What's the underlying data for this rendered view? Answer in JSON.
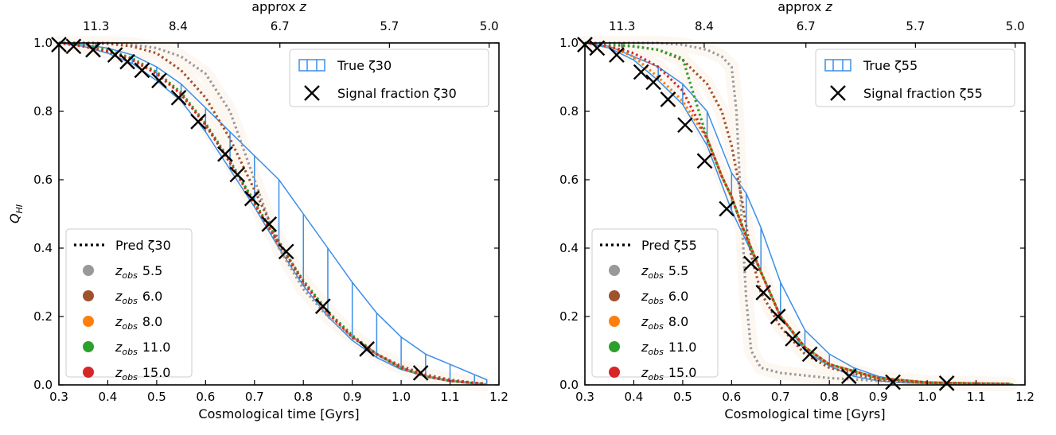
{
  "chart_data": [
    {
      "type": "line",
      "title": "",
      "xlabel": "Cosmological time [Gyrs]",
      "ylabel": "Q_HI",
      "top_xlabel": "approx z",
      "xlim": [
        0.3,
        1.2
      ],
      "ylim": [
        0.0,
        1.0
      ],
      "xticks": [
        "0.3",
        "0.4",
        "0.5",
        "0.6",
        "0.7",
        "0.8",
        "0.9",
        "1.0",
        "1.1",
        "1.2"
      ],
      "yticks": [
        "0.0",
        "0.2",
        "0.4",
        "0.6",
        "0.8",
        "1.0"
      ],
      "top_ticks": [
        {
          "label": "11.3",
          "t": 0.376
        },
        {
          "label": "8.4",
          "t": 0.544
        },
        {
          "label": "6.7",
          "t": 0.752
        },
        {
          "label": "5.7",
          "t": 0.976
        },
        {
          "label": "5.0",
          "t": 1.18
        }
      ],
      "grid": false,
      "legend_upper": {
        "position": "top-right",
        "entries": [
          {
            "kind": "band",
            "label": "True ζ30",
            "color": "#3a8fe8"
          },
          {
            "kind": "marker",
            "label": "Signal fraction ζ30",
            "color": "#000000"
          }
        ]
      },
      "legend_lower": {
        "position": "bottom-left",
        "entries": [
          {
            "kind": "dotted",
            "label": "Pred ζ30",
            "color": "#000000"
          },
          {
            "kind": "dot",
            "label_main": "z",
            "label_sub": "obs",
            "label_val": "5.5",
            "color": "#999999"
          },
          {
            "kind": "dot",
            "label_main": "z",
            "label_sub": "obs",
            "label_val": "6.0",
            "color": "#a0522d"
          },
          {
            "kind": "dot",
            "label_main": "z",
            "label_sub": "obs",
            "label_val": "8.0",
            "color": "#ff7f0e"
          },
          {
            "kind": "dot",
            "label_main": "z",
            "label_sub": "obs",
            "label_val": "11.0",
            "color": "#2ca02c"
          },
          {
            "kind": "dot",
            "label_main": "z",
            "label_sub": "obs",
            "label_val": "15.0",
            "color": "#d62728"
          }
        ]
      },
      "true_band": {
        "name": "True ζ30",
        "color": "#3a8fe8",
        "x": [
          0.3,
          0.35,
          0.4,
          0.45,
          0.5,
          0.55,
          0.6,
          0.65,
          0.7,
          0.75,
          0.8,
          0.85,
          0.9,
          0.95,
          1.0,
          1.05,
          1.1,
          1.15,
          1.175
        ],
        "upper": [
          1.0,
          0.995,
          0.985,
          0.965,
          0.93,
          0.88,
          0.81,
          0.74,
          0.67,
          0.6,
          0.5,
          0.4,
          0.3,
          0.21,
          0.14,
          0.09,
          0.06,
          0.03,
          0.015
        ],
        "lower": [
          1.0,
          0.99,
          0.97,
          0.94,
          0.89,
          0.83,
          0.74,
          0.63,
          0.52,
          0.4,
          0.29,
          0.2,
          0.13,
          0.08,
          0.045,
          0.025,
          0.012,
          0.005,
          0.003
        ]
      },
      "series": [
        {
          "name": "z_obs 5.5",
          "color": "#999999",
          "x": [
            0.3,
            0.35,
            0.4,
            0.45,
            0.5,
            0.55,
            0.6,
            0.65,
            0.7,
            0.75,
            0.8,
            0.85,
            0.9,
            0.95,
            1.0,
            1.05,
            1.1,
            1.15,
            1.17
          ],
          "y": [
            1.0,
            1.0,
            1.0,
            0.995,
            0.985,
            0.96,
            0.91,
            0.8,
            0.6,
            0.4,
            0.28,
            0.2,
            0.14,
            0.09,
            0.05,
            0.025,
            0.012,
            0.004,
            0.002
          ]
        },
        {
          "name": "z_obs 6.0",
          "color": "#a0522d",
          "x": [
            0.3,
            0.35,
            0.4,
            0.45,
            0.5,
            0.55,
            0.6,
            0.65,
            0.7,
            0.75,
            0.8,
            0.85,
            0.9,
            0.95,
            1.0,
            1.05,
            1.1,
            1.15,
            1.17
          ],
          "y": [
            1.0,
            1.0,
            0.998,
            0.99,
            0.97,
            0.92,
            0.84,
            0.72,
            0.57,
            0.42,
            0.3,
            0.21,
            0.14,
            0.09,
            0.055,
            0.03,
            0.015,
            0.006,
            0.004
          ]
        },
        {
          "name": "z_obs 8.0",
          "color": "#ff7f0e",
          "x": [
            0.3,
            0.35,
            0.4,
            0.45,
            0.5,
            0.55,
            0.6,
            0.65,
            0.7,
            0.75,
            0.8,
            0.85,
            0.9,
            0.95,
            1.0,
            1.05,
            1.1,
            1.15,
            1.17
          ],
          "y": [
            1.0,
            0.99,
            0.975,
            0.95,
            0.91,
            0.85,
            0.76,
            0.65,
            0.53,
            0.41,
            0.3,
            0.21,
            0.14,
            0.09,
            0.05,
            0.025,
            0.012,
            0.005,
            0.003
          ]
        },
        {
          "name": "z_obs 11.0",
          "color": "#2ca02c",
          "x": [
            0.3,
            0.35,
            0.4,
            0.45,
            0.5,
            0.55,
            0.6,
            0.65,
            0.7,
            0.75,
            0.8,
            0.85,
            0.9,
            0.95,
            1.0,
            1.05,
            1.1,
            1.15,
            1.17
          ],
          "y": [
            1.0,
            0.995,
            0.98,
            0.955,
            0.915,
            0.855,
            0.765,
            0.655,
            0.535,
            0.415,
            0.305,
            0.215,
            0.145,
            0.09,
            0.05,
            0.025,
            0.012,
            0.005,
            0.003
          ]
        },
        {
          "name": "z_obs 15.0",
          "color": "#d62728",
          "x": [
            0.3,
            0.35,
            0.4,
            0.45,
            0.5,
            0.55,
            0.6,
            0.65,
            0.7,
            0.75,
            0.8,
            0.85,
            0.9,
            0.95,
            1.0,
            1.05,
            1.1,
            1.15,
            1.17
          ],
          "y": [
            1.0,
            0.99,
            0.975,
            0.95,
            0.91,
            0.85,
            0.76,
            0.65,
            0.53,
            0.41,
            0.3,
            0.21,
            0.14,
            0.09,
            0.05,
            0.025,
            0.012,
            0.005,
            0.003
          ]
        }
      ],
      "signal_fraction": {
        "name": "Signal fraction ζ30",
        "x": [
          0.3,
          0.33,
          0.37,
          0.415,
          0.44,
          0.47,
          0.505,
          0.545,
          0.585,
          0.64,
          0.665,
          0.695,
          0.73,
          0.765,
          0.84,
          0.93,
          1.04
        ],
        "y": [
          0.995,
          0.99,
          0.98,
          0.965,
          0.945,
          0.92,
          0.89,
          0.84,
          0.77,
          0.675,
          0.615,
          0.545,
          0.47,
          0.39,
          0.23,
          0.105,
          0.035
        ]
      }
    },
    {
      "type": "line",
      "title": "",
      "xlabel": "Cosmological time [Gyrs]",
      "ylabel": "",
      "top_xlabel": "approx z",
      "xlim": [
        0.3,
        1.2
      ],
      "ylim": [
        0.0,
        1.0
      ],
      "xticks": [
        "0.3",
        "0.4",
        "0.5",
        "0.6",
        "0.7",
        "0.8",
        "0.9",
        "1.0",
        "1.1",
        "1.2"
      ],
      "yticks": [
        "0.0",
        "0.2",
        "0.4",
        "0.6",
        "0.8",
        "1.0"
      ],
      "top_ticks": [
        {
          "label": "11.3",
          "t": 0.376
        },
        {
          "label": "8.4",
          "t": 0.544
        },
        {
          "label": "6.7",
          "t": 0.752
        },
        {
          "label": "5.7",
          "t": 0.976
        },
        {
          "label": "5.0",
          "t": 1.18
        }
      ],
      "grid": false,
      "legend_upper": {
        "position": "top-right",
        "entries": [
          {
            "kind": "band",
            "label": "True ζ55",
            "color": "#3a8fe8"
          },
          {
            "kind": "marker",
            "label": "Signal fraction ζ55",
            "color": "#000000"
          }
        ]
      },
      "legend_lower": {
        "position": "bottom-left",
        "entries": [
          {
            "kind": "dotted",
            "label": "Pred ζ55",
            "color": "#000000"
          },
          {
            "kind": "dot",
            "label_main": "z",
            "label_sub": "obs",
            "label_val": "5.5",
            "color": "#999999"
          },
          {
            "kind": "dot",
            "label_main": "z",
            "label_sub": "obs",
            "label_val": "6.0",
            "color": "#a0522d"
          },
          {
            "kind": "dot",
            "label_main": "z",
            "label_sub": "obs",
            "label_val": "8.0",
            "color": "#ff7f0e"
          },
          {
            "kind": "dot",
            "label_main": "z",
            "label_sub": "obs",
            "label_val": "11.0",
            "color": "#2ca02c"
          },
          {
            "kind": "dot",
            "label_main": "z",
            "label_sub": "obs",
            "label_val": "15.0",
            "color": "#d62728"
          }
        ]
      },
      "true_band": {
        "name": "True ζ55",
        "color": "#3a8fe8",
        "x": [
          0.3,
          0.35,
          0.4,
          0.45,
          0.5,
          0.55,
          0.6,
          0.63,
          0.66,
          0.7,
          0.75,
          0.8,
          0.85,
          0.9,
          0.95,
          1.0,
          1.05,
          1.1,
          1.175
        ],
        "upper": [
          1.0,
          0.99,
          0.96,
          0.93,
          0.88,
          0.8,
          0.62,
          0.56,
          0.46,
          0.3,
          0.16,
          0.09,
          0.05,
          0.025,
          0.012,
          0.006,
          0.004,
          0.003,
          0.003
        ],
        "lower": [
          1.0,
          0.985,
          0.95,
          0.89,
          0.82,
          0.7,
          0.51,
          0.42,
          0.33,
          0.2,
          0.1,
          0.055,
          0.025,
          0.012,
          0.006,
          0.004,
          0.003,
          0.002,
          0.002
        ]
      },
      "series": [
        {
          "name": "z_obs 5.5",
          "color": "#999999",
          "x": [
            0.3,
            0.35,
            0.4,
            0.45,
            0.5,
            0.55,
            0.58,
            0.6,
            0.61,
            0.62,
            0.63,
            0.64,
            0.66,
            0.7,
            0.8,
            0.9,
            1.0,
            1.1,
            1.17
          ],
          "y": [
            1.0,
            1.0,
            1.0,
            1.0,
            0.995,
            0.98,
            0.96,
            0.93,
            0.8,
            0.5,
            0.25,
            0.1,
            0.05,
            0.035,
            0.02,
            0.012,
            0.007,
            0.004,
            0.003
          ]
        },
        {
          "name": "z_obs 6.0",
          "color": "#a0522d",
          "x": [
            0.3,
            0.35,
            0.4,
            0.45,
            0.5,
            0.55,
            0.58,
            0.6,
            0.62,
            0.64,
            0.66,
            0.7,
            0.75,
            0.8,
            0.9,
            1.0,
            1.1,
            1.17
          ],
          "y": [
            1.0,
            0.995,
            0.99,
            0.98,
            0.95,
            0.88,
            0.8,
            0.7,
            0.55,
            0.38,
            0.27,
            0.17,
            0.09,
            0.05,
            0.015,
            0.006,
            0.003,
            0.003
          ]
        },
        {
          "name": "z_obs 8.0",
          "color": "#ff7f0e",
          "x": [
            0.3,
            0.35,
            0.4,
            0.45,
            0.5,
            0.55,
            0.58,
            0.6,
            0.62,
            0.64,
            0.66,
            0.7,
            0.75,
            0.8,
            0.9,
            1.0,
            1.1,
            1.17
          ],
          "y": [
            1.0,
            0.99,
            0.96,
            0.9,
            0.83,
            0.72,
            0.61,
            0.55,
            0.47,
            0.4,
            0.33,
            0.2,
            0.11,
            0.06,
            0.02,
            0.007,
            0.004,
            0.003
          ]
        },
        {
          "name": "z_obs 11.0",
          "color": "#2ca02c",
          "x": [
            0.3,
            0.35,
            0.4,
            0.45,
            0.5,
            0.55,
            0.58,
            0.6,
            0.62,
            0.64,
            0.66,
            0.7,
            0.75,
            0.8,
            0.9,
            1.0,
            1.1,
            1.17
          ],
          "y": [
            1.0,
            0.995,
            0.99,
            0.98,
            0.955,
            0.72,
            0.61,
            0.55,
            0.47,
            0.4,
            0.33,
            0.2,
            0.11,
            0.06,
            0.02,
            0.007,
            0.004,
            0.003
          ]
        },
        {
          "name": "z_obs 15.0",
          "color": "#d62728",
          "x": [
            0.3,
            0.35,
            0.4,
            0.45,
            0.5,
            0.55,
            0.58,
            0.6,
            0.62,
            0.64,
            0.66,
            0.7,
            0.75,
            0.8,
            0.9,
            1.0,
            1.1,
            1.17
          ],
          "y": [
            1.0,
            0.99,
            0.97,
            0.93,
            0.86,
            0.72,
            0.61,
            0.55,
            0.47,
            0.4,
            0.33,
            0.2,
            0.11,
            0.06,
            0.02,
            0.007,
            0.004,
            0.003
          ]
        }
      ],
      "signal_fraction": {
        "name": "Signal fraction ζ55",
        "x": [
          0.3,
          0.325,
          0.365,
          0.415,
          0.44,
          0.47,
          0.505,
          0.545,
          0.59,
          0.64,
          0.665,
          0.695,
          0.725,
          0.76,
          0.84,
          0.93,
          1.04
        ],
        "y": [
          0.995,
          0.985,
          0.965,
          0.915,
          0.885,
          0.835,
          0.76,
          0.655,
          0.515,
          0.355,
          0.27,
          0.2,
          0.135,
          0.09,
          0.025,
          0.008,
          0.005
        ]
      }
    }
  ]
}
